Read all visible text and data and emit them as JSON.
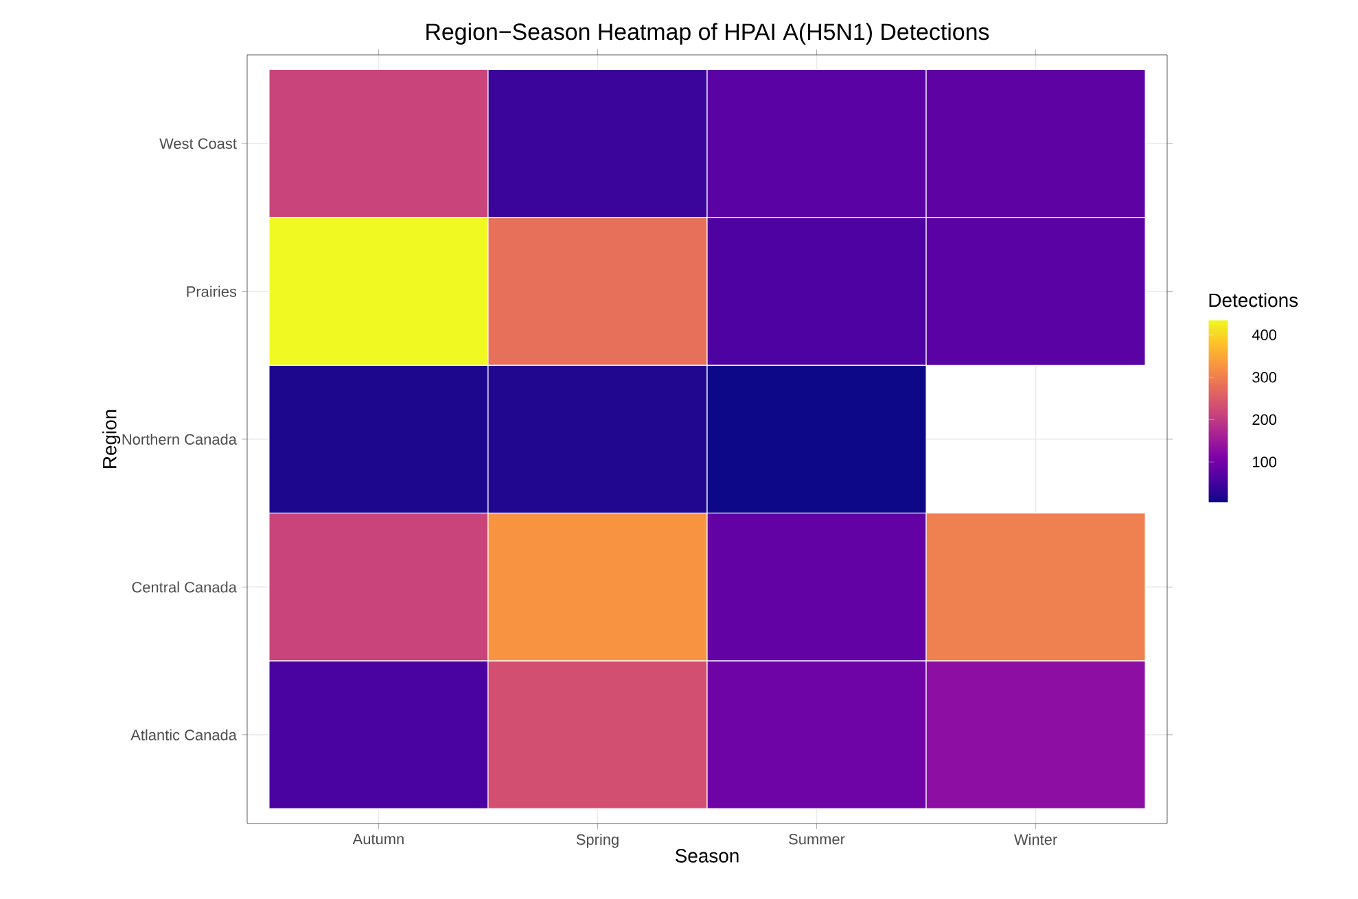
{
  "chart_data": {
    "type": "heatmap",
    "title": "Region−Season Heatmap of HPAI A(H5N1) Detections",
    "xlabel": "Season",
    "ylabel": "Region",
    "clabel": "Detections",
    "categories": [
      "Autumn",
      "Spring",
      "Summer",
      "Winter"
    ],
    "y_categories": [
      "West Coast",
      "Prairies",
      "Northern Canada",
      "Central Canada",
      "Atlantic Canada"
    ],
    "cells": [
      [
        215,
        43,
        73,
        77
      ],
      [
        435,
        280,
        60,
        73
      ],
      [
        17,
        21,
        4,
        null
      ],
      [
        215,
        327,
        82,
        301
      ],
      [
        56,
        232,
        95,
        130
      ]
    ],
    "clim": [
      4,
      435
    ],
    "cticks": [
      100,
      200,
      300,
      400
    ],
    "grid": true
  }
}
